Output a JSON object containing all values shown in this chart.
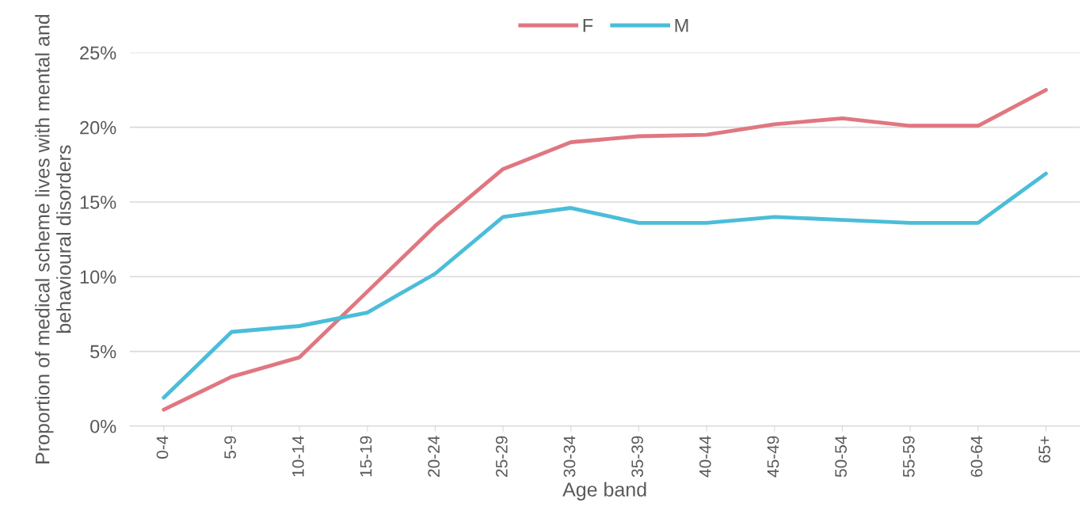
{
  "chart_data": {
    "type": "line",
    "xlabel": "Age band",
    "ylabel": "Proportion of medical scheme lives with mental and behavioural disorders",
    "categories": [
      "0-4",
      "5-9",
      "10-14",
      "15-19",
      "20-24",
      "25-29",
      "30-34",
      "35-39",
      "40-44",
      "45-49",
      "50-54",
      "55-59",
      "60-64",
      "65+"
    ],
    "series": [
      {
        "name": "F",
        "color": "#e07780",
        "values": [
          1.1,
          3.3,
          4.6,
          9.0,
          13.4,
          17.2,
          19.0,
          19.4,
          19.5,
          20.2,
          20.6,
          20.1,
          20.1,
          22.5
        ]
      },
      {
        "name": "M",
        "color": "#4bbdd8",
        "values": [
          1.9,
          6.3,
          6.7,
          7.6,
          10.2,
          14.0,
          14.6,
          13.6,
          13.6,
          14.0,
          13.8,
          13.6,
          13.6,
          16.9
        ]
      }
    ],
    "ylim": [
      0,
      25
    ],
    "yticks": [
      {
        "value": 0,
        "label": "0%"
      },
      {
        "value": 5,
        "label": "5%"
      },
      {
        "value": 10,
        "label": "10%"
      },
      {
        "value": 15,
        "label": "15%"
      },
      {
        "value": 20,
        "label": "20%"
      },
      {
        "value": 25,
        "label": "25%"
      }
    ],
    "grid": "y",
    "legend": "top",
    "marker": "none",
    "line_style": "solid"
  }
}
